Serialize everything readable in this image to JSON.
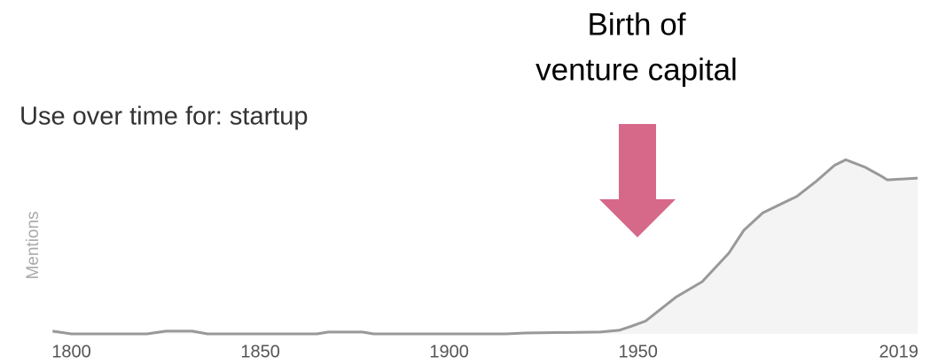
{
  "chart_data": {
    "type": "area",
    "title": "Use over time for: startup",
    "y_label": "Mentions",
    "annotation": [
      "Birth of",
      "venture capital"
    ],
    "x": [
      1795,
      1800,
      1820,
      1825,
      1832,
      1836,
      1865,
      1868,
      1877,
      1880,
      1915,
      1920,
      1940,
      1945,
      1948,
      1952,
      1960,
      1967,
      1974,
      1978,
      1983,
      1988,
      1992,
      1997,
      2002,
      2005,
      2010,
      2014,
      2016,
      2024
    ],
    "values": [
      1.5,
      0,
      0,
      1.5,
      1.5,
      0,
      0,
      1,
      1,
      0,
      0,
      0.5,
      1,
      2,
      4,
      7,
      20,
      28.5,
      44,
      56.5,
      66,
      71,
      75,
      83,
      92,
      95,
      91,
      86.5,
      84,
      85
    ],
    "color": "#999999",
    "fill": "#f4f4f4",
    "annotation_color": "#d6688a",
    "xlim": [
      1794,
      2024
    ],
    "xticks": [
      1800,
      1850,
      1900,
      1950,
      2019
    ],
    "ylim": [
      0,
      100
    ]
  }
}
